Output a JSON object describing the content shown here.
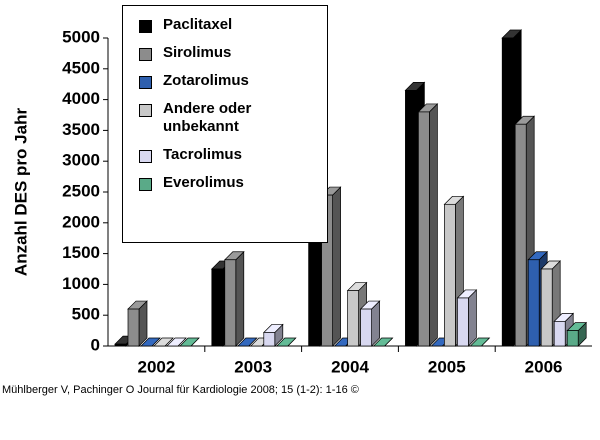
{
  "chart_data": {
    "type": "bar3d",
    "y_label": "Anzahl DES pro Jahr",
    "source": "Mühlberger V, Pachinger O Journal für Kardiologie 2008; 15 (1-2): 1-16 ©",
    "categories": [
      "2002",
      "2003",
      "2004",
      "2005",
      "2006"
    ],
    "series": [
      {
        "name": "Paclitaxel",
        "color": "#000000",
        "values": [
          30,
          1250,
          2350,
          4150,
          5000
        ]
      },
      {
        "name": "Sirolimus",
        "color": "#8c8c8c",
        "values": [
          600,
          1400,
          2450,
          3800,
          3600
        ]
      },
      {
        "name": "Zotarolimus",
        "color": "#2e5fae",
        "values": [
          0,
          0,
          0,
          0,
          1400
        ]
      },
      {
        "name": "Andere oder unbekannt",
        "color": "#c8c8c8",
        "values": [
          0,
          0,
          900,
          2300,
          1250
        ]
      },
      {
        "name": "Tacrolimus",
        "color": "#d8d8f0",
        "values": [
          0,
          220,
          600,
          780,
          400
        ]
      },
      {
        "name": "Everolimus",
        "color": "#5aaa88",
        "values": [
          0,
          0,
          0,
          0,
          250
        ]
      }
    ],
    "ylim": [
      0,
      5000
    ],
    "yticks": [
      0,
      500,
      1000,
      1500,
      2000,
      2500,
      3000,
      3500,
      4000,
      4500,
      5000
    ]
  }
}
